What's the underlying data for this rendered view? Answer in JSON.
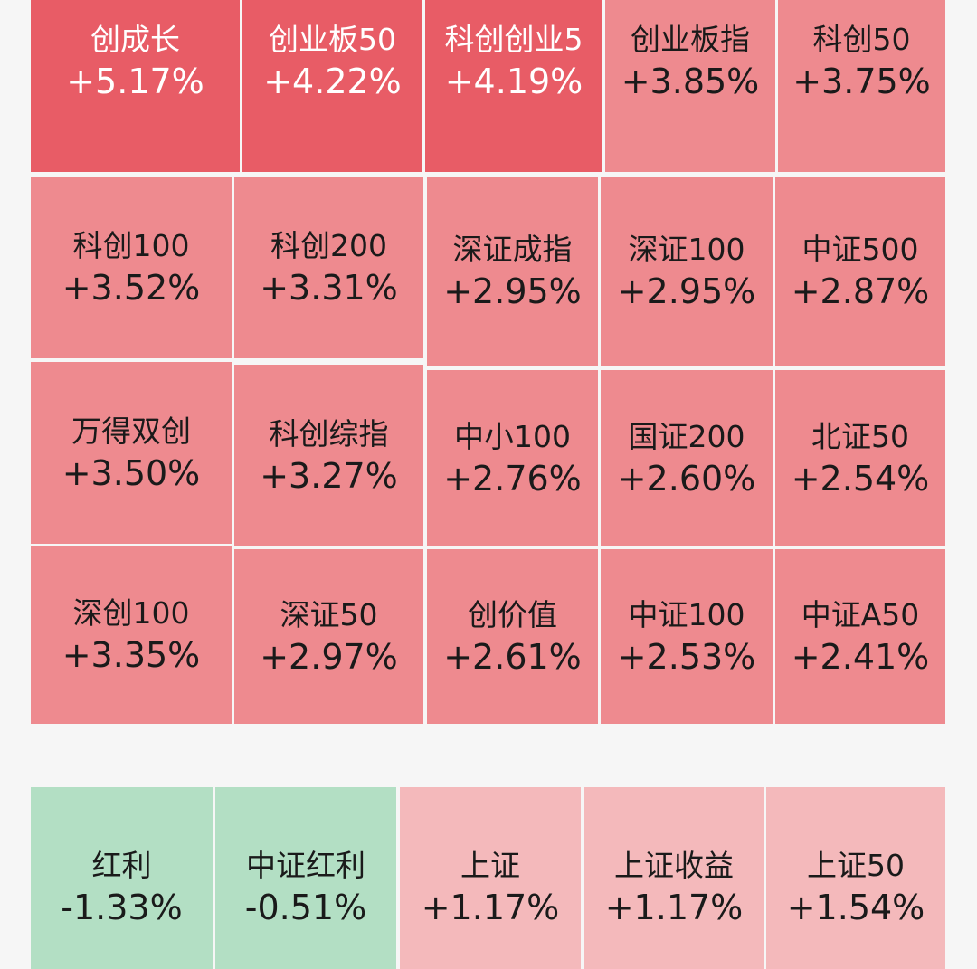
{
  "colors": {
    "strong_up": "#e85c66",
    "mid_up": "#ee8a8f",
    "light_up": "#f4b9bb",
    "down": "#b3dfc4",
    "gridline": "#ffffff",
    "background": "#f6f6f6"
  },
  "heatmap": [
    {
      "name": "创成长",
      "change": "+5.17%",
      "level": "strong"
    },
    {
      "name": "创业板50",
      "change": "+4.22%",
      "level": "strong"
    },
    {
      "name": "科创创业5",
      "change": "+4.19%",
      "level": "strong"
    },
    {
      "name": "创业板指",
      "change": "+3.85%",
      "level": "mid"
    },
    {
      "name": "科创50",
      "change": "+3.75%",
      "level": "mid"
    },
    {
      "name": "科创100",
      "change": "+3.52%",
      "level": "mid"
    },
    {
      "name": "科创200",
      "change": "+3.31%",
      "level": "mid"
    },
    {
      "name": "深证成指",
      "change": "+2.95%",
      "level": "mid"
    },
    {
      "name": "深证100",
      "change": "+2.95%",
      "level": "mid"
    },
    {
      "name": "中证500",
      "change": "+2.87%",
      "level": "mid"
    },
    {
      "name": "万得双创",
      "change": "+3.50%",
      "level": "mid"
    },
    {
      "name": "科创综指",
      "change": "+3.27%",
      "level": "mid"
    },
    {
      "name": "中小100",
      "change": "+2.76%",
      "level": "mid"
    },
    {
      "name": "国证200",
      "change": "+2.60%",
      "level": "mid"
    },
    {
      "name": "北证50",
      "change": "+2.54%",
      "level": "mid"
    },
    {
      "name": "深创100",
      "change": "+3.35%",
      "level": "mid"
    },
    {
      "name": "深证50",
      "change": "+2.97%",
      "level": "mid"
    },
    {
      "name": "创价值",
      "change": "+2.61%",
      "level": "mid"
    },
    {
      "name": "中证100",
      "change": "+2.53%",
      "level": "mid"
    },
    {
      "name": "中证A50",
      "change": "+2.41%",
      "level": "mid"
    }
  ],
  "lower": [
    {
      "name": "红利",
      "change": "-1.33%",
      "level": "down"
    },
    {
      "name": "中证红利",
      "change": "-0.51%",
      "level": "down"
    },
    {
      "name": "上证",
      "change": "+1.17%",
      "level": "light"
    },
    {
      "name": "上证收益",
      "change": "+1.17%",
      "level": "light"
    },
    {
      "name": "上证50",
      "change": "+1.54%",
      "level": "light"
    }
  ]
}
